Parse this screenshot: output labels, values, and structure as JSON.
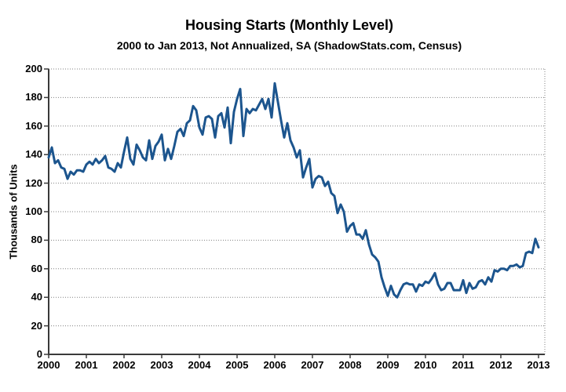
{
  "chart_data": {
    "type": "line",
    "title": "Housing Starts (Monthly Level)",
    "subtitle": "2000 to Jan 2013, Not Annualized, SA (ShadowStats.com, Census)",
    "ylabel": "Thousands of Units",
    "xlabel": "",
    "ylim": [
      0,
      200
    ],
    "ytick_interval": 20,
    "ytick_labels": [
      "0",
      "20",
      "40",
      "60",
      "80",
      "100",
      "120",
      "140",
      "160",
      "180",
      "200"
    ],
    "xtick_labels": [
      "2000",
      "2001",
      "2002",
      "2003",
      "2004",
      "2005",
      "2006",
      "2007",
      "2008",
      "2009",
      "2010",
      "2011",
      "2012",
      "2013"
    ],
    "grid": "horizontal-dotted-gray, plot frame top/right dotted",
    "legend": "none",
    "frequency": "monthly",
    "x_start": "2000-01",
    "x_end": "2013-01",
    "series": [
      {
        "name": "Housing Starts (thousands of units, monthly, SA)",
        "values": [
          138,
          145,
          134,
          136,
          131,
          130,
          123,
          128,
          126,
          129,
          129,
          128,
          133,
          135,
          133,
          137,
          134,
          136,
          139,
          131,
          130,
          128,
          134,
          131,
          142,
          152,
          137,
          133,
          147,
          143,
          138,
          136,
          150,
          137,
          146,
          149,
          154,
          136,
          144,
          137,
          146,
          156,
          158,
          153,
          162,
          164,
          174,
          171,
          159,
          154,
          166,
          167,
          165,
          152,
          167,
          169,
          159,
          173,
          148,
          170,
          179,
          186,
          153,
          172,
          169,
          172,
          171,
          175,
          179,
          172,
          179,
          166,
          190,
          177,
          164,
          152,
          162,
          150,
          145,
          138,
          143,
          124,
          131,
          137,
          117,
          123,
          125,
          124,
          118,
          121,
          113,
          111,
          99,
          105,
          100,
          86,
          90,
          92,
          84,
          84,
          81,
          87,
          77,
          70,
          68,
          65,
          54,
          47,
          41,
          48,
          42,
          40,
          45,
          49,
          50,
          49,
          49,
          44,
          49,
          48,
          51,
          50,
          53,
          57,
          49,
          45,
          46,
          50,
          50,
          45,
          45,
          45,
          52,
          43,
          50,
          46,
          47,
          51,
          52,
          49,
          54,
          51,
          59,
          58,
          60,
          60,
          59,
          62,
          62,
          63,
          61,
          62,
          71,
          72,
          71,
          81,
          75
        ]
      }
    ],
    "colors": {
      "line": "#1c558e",
      "grid": "#808080",
      "axis": "#3a3a3a",
      "text": "#000000",
      "background": "#ffffff"
    }
  }
}
